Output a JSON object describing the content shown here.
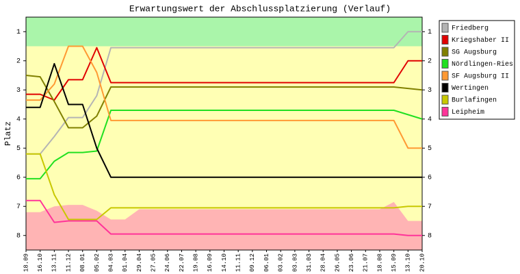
{
  "chart_data": {
    "type": "line",
    "title": "Erwartungswert der Abschlussplatzierung (Verlauf)",
    "y_label": "Platz",
    "categories": [
      "18.09",
      "16.10",
      "13.11",
      "11.12",
      "08.01",
      "05.02",
      "04.03",
      "01.04",
      "29.04",
      "27.05",
      "24.06",
      "22.07",
      "19.08",
      "16.09",
      "14.10",
      "11.11",
      "09.12",
      "06.01",
      "03.02",
      "03.03",
      "31.03",
      "28.04",
      "26.05",
      "23.06",
      "21.07",
      "18.08",
      "15.09",
      "13.10",
      "20.10"
    ],
    "ylim": [
      0.5,
      8.5
    ],
    "y_inverted": true,
    "yticks": [
      1,
      2,
      3,
      4,
      5,
      6,
      7,
      8
    ],
    "areas": [
      {
        "color": "#aaf5aa",
        "fill": "top",
        "values": [
          1.5,
          1.5,
          1.5,
          1.5,
          1.5,
          1.5,
          1.5,
          1.5,
          1.5,
          1.5,
          1.5,
          1.5,
          1.5,
          1.5,
          1.5,
          1.5,
          1.5,
          1.5,
          1.5,
          1.5,
          1.5,
          1.5,
          1.5,
          1.5,
          1.5,
          1.5,
          1.5,
          1.5,
          1.5
        ]
      },
      {
        "color": "#ffb4b4",
        "fill": "bottom",
        "values": [
          7.2,
          7.2,
          7.0,
          6.95,
          6.95,
          7.15,
          7.45,
          7.45,
          7.1,
          7.1,
          7.1,
          7.1,
          7.1,
          7.1,
          7.1,
          7.1,
          7.1,
          7.1,
          7.1,
          7.1,
          7.1,
          7.1,
          7.1,
          7.1,
          7.1,
          7.1,
          6.85,
          7.5,
          7.5
        ]
      }
    ],
    "middle_color": "#ffffb4",
    "series": [
      {
        "name": "Friedberg",
        "color": "#b4b4b4",
        "values": [
          5.2,
          5.2,
          4.6,
          3.95,
          3.95,
          3.2,
          1.55,
          1.55,
          1.55,
          1.55,
          1.55,
          1.55,
          1.55,
          1.55,
          1.55,
          1.55,
          1.55,
          1.55,
          1.55,
          1.55,
          1.55,
          1.55,
          1.55,
          1.55,
          1.55,
          1.55,
          1.55,
          1.0,
          1.0
        ]
      },
      {
        "name": "Kriegshaber II",
        "color": "#e00000",
        "values": [
          3.15,
          3.15,
          3.35,
          2.65,
          2.65,
          1.55,
          2.75,
          2.75,
          2.75,
          2.75,
          2.75,
          2.75,
          2.75,
          2.75,
          2.75,
          2.75,
          2.75,
          2.75,
          2.75,
          2.75,
          2.75,
          2.75,
          2.75,
          2.75,
          2.75,
          2.75,
          2.75,
          2.0,
          2.0
        ]
      },
      {
        "name": "SG Augsburg",
        "color": "#808000",
        "values": [
          2.5,
          2.55,
          3.4,
          4.3,
          4.3,
          3.9,
          2.9,
          2.9,
          2.9,
          2.9,
          2.9,
          2.9,
          2.9,
          2.9,
          2.9,
          2.9,
          2.9,
          2.9,
          2.9,
          2.9,
          2.9,
          2.9,
          2.9,
          2.9,
          2.9,
          2.9,
          2.9,
          2.95,
          3.0
        ]
      },
      {
        "name": "Nördlingen-Ries",
        "color": "#20e020",
        "values": [
          6.05,
          6.05,
          5.45,
          5.15,
          5.15,
          5.1,
          3.7,
          3.7,
          3.7,
          3.7,
          3.7,
          3.7,
          3.7,
          3.7,
          3.7,
          3.7,
          3.7,
          3.7,
          3.7,
          3.7,
          3.7,
          3.7,
          3.7,
          3.7,
          3.7,
          3.7,
          3.7,
          3.85,
          4.0
        ]
      },
      {
        "name": "SF Augsburg II",
        "color": "#ff9933",
        "values": [
          3.35,
          3.35,
          2.8,
          1.5,
          1.5,
          2.4,
          4.05,
          4.05,
          4.05,
          4.05,
          4.05,
          4.05,
          4.05,
          4.05,
          4.05,
          4.05,
          4.05,
          4.05,
          4.05,
          4.05,
          4.05,
          4.05,
          4.05,
          4.05,
          4.05,
          4.05,
          4.05,
          5.0,
          5.0
        ]
      },
      {
        "name": "Wertingen",
        "color": "#000000",
        "values": [
          3.6,
          3.6,
          2.1,
          3.5,
          3.5,
          5.0,
          6.0,
          6.0,
          6.0,
          6.0,
          6.0,
          6.0,
          6.0,
          6.0,
          6.0,
          6.0,
          6.0,
          6.0,
          6.0,
          6.0,
          6.0,
          6.0,
          6.0,
          6.0,
          6.0,
          6.0,
          6.0,
          6.0,
          6.0
        ]
      },
      {
        "name": "Burlafingen",
        "color": "#c8c800",
        "values": [
          5.2,
          5.2,
          6.6,
          7.45,
          7.45,
          7.45,
          7.05,
          7.05,
          7.05,
          7.05,
          7.05,
          7.05,
          7.05,
          7.05,
          7.05,
          7.05,
          7.05,
          7.05,
          7.05,
          7.05,
          7.05,
          7.05,
          7.05,
          7.05,
          7.05,
          7.05,
          7.05,
          7.0,
          7.0
        ]
      },
      {
        "name": "Leipheim",
        "color": "#ff3399",
        "values": [
          6.8,
          6.8,
          7.55,
          7.5,
          7.5,
          7.5,
          7.95,
          7.95,
          7.95,
          7.95,
          7.95,
          7.95,
          7.95,
          7.95,
          7.95,
          7.95,
          7.95,
          7.95,
          7.95,
          7.95,
          7.95,
          7.95,
          7.95,
          7.95,
          7.95,
          7.95,
          7.95,
          8.0,
          8.0
        ]
      }
    ]
  }
}
